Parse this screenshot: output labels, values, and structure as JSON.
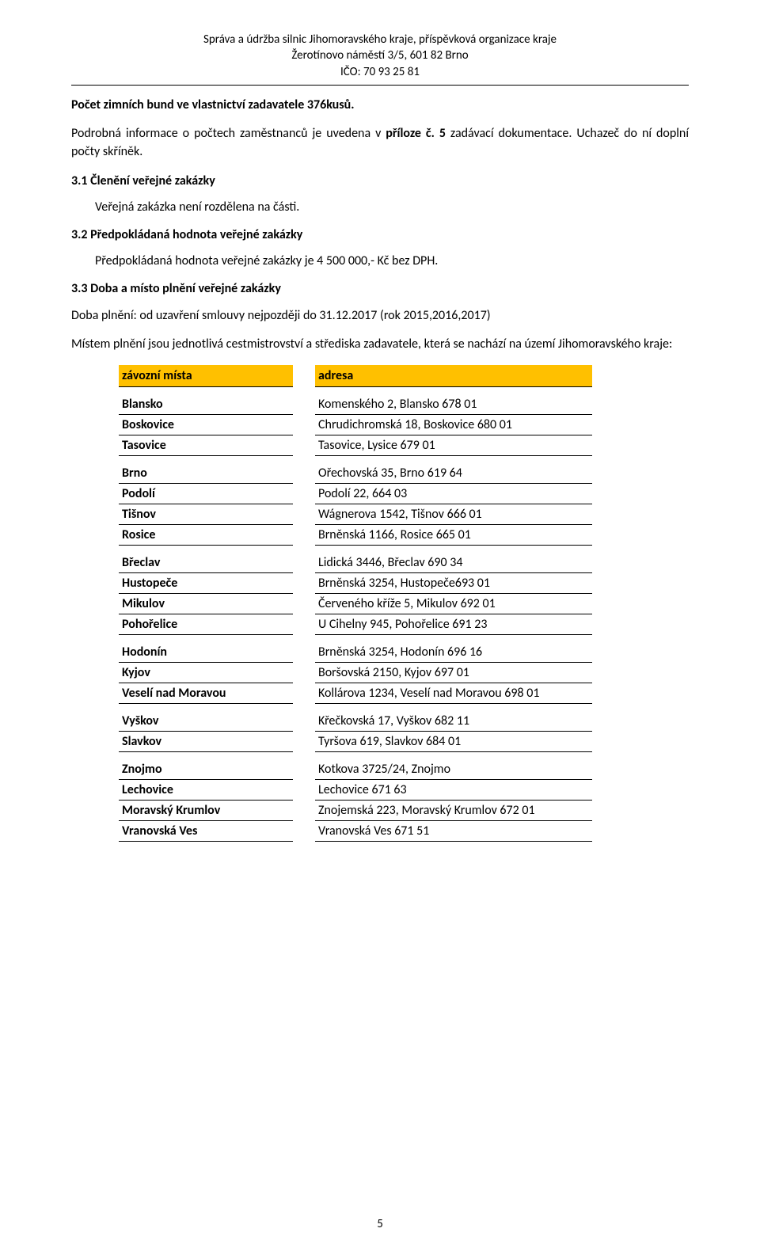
{
  "header": {
    "line1": "Správa a údržba silnic Jihomoravského kraje, příspěvková organizace kraje",
    "line2": "Žerotínovo náměstí 3/5, 601 82 Brno",
    "line3": "IČO: 70 93 25 81"
  },
  "body": {
    "l1": "Počet zimních bund ve vlastnictví zadavatele 376kusů.",
    "l2_a": "Podrobná informace o počtech zaměstnanců je uvedena v ",
    "l2_b": "příloze č. 5",
    "l2_c": " zadávací dokumentace. Uchazeč do ní doplní počty skříněk.",
    "s31_title": "3.1  Členění veřejné zakázky",
    "s31_body": "Veřejná zakázka není rozdělena na části.",
    "s32_title": "3.2  Předpokládaná hodnota veřejné zakázky",
    "s32_body": "Předpokládaná hodnota veřejné zakázky je 4 500 000,- Kč bez DPH.",
    "s33_title": "3.3  Doba a místo plnění veřejné zakázky",
    "s33_body1": "Doba plnění:  od uzavření  smlouvy nejpozději do 31.12.2017 (rok 2015,2016,2017)",
    "s33_body2": "Místem plnění jsou jednotlivá cestmistrovství a střediska zadavatele, která se nachází na území Jihomoravského kraje:"
  },
  "table": {
    "header_left": "závozní místa",
    "header_right": "adresa",
    "groups": [
      [
        {
          "place": "Blansko",
          "addr": "Komenského 2, Blansko 678 01"
        },
        {
          "place": "Boskovice",
          "addr": "Chrudichromská 18, Boskovice 680 01"
        },
        {
          "place": "Tasovice",
          "addr": "Tasovice, Lysice 679 01"
        }
      ],
      [
        {
          "place": "Brno",
          "addr": "Ořechovská 35, Brno 619 64"
        },
        {
          "place": "Podolí",
          "addr": "Podolí 22, 664 03"
        },
        {
          "place": "Tišnov",
          "addr": "Wágnerova 1542, Tišnov 666 01"
        },
        {
          "place": "Rosice",
          "addr": "Brněnská 1166, Rosice 665 01"
        }
      ],
      [
        {
          "place": "Břeclav",
          "addr": "Lidická 3446, Břeclav 690 34"
        },
        {
          "place": "Hustopeče",
          "addr": "Brněnská 3254, Hustopeče693 01"
        },
        {
          "place": "Mikulov",
          "addr": "Červeného kříže 5, Mikulov 692 01"
        },
        {
          "place": "Pohořelice",
          "addr": "U Cihelny 945, Pohořelice  691 23"
        }
      ],
      [
        {
          "place": "Hodonín",
          "addr": "Brněnská 3254, Hodonín 696 16"
        },
        {
          "place": "Kyjov",
          "addr": "Boršovská 2150, Kyjov 697 01"
        },
        {
          "place": "Veselí nad Moravou",
          "addr": "Kollárova 1234, Veselí nad Moravou 698 01"
        }
      ],
      [
        {
          "place": "Vyškov",
          "addr": "Křečkovská 17, Vyškov 682 11"
        },
        {
          "place": "Slavkov",
          "addr": "Tyršova 619, Slavkov 684 01"
        }
      ],
      [
        {
          "place": "Znojmo",
          "addr": "Kotkova 3725/24, Znojmo"
        },
        {
          "place": "Lechovice",
          "addr": "Lechovice 671 63"
        },
        {
          "place": "Moravský Krumlov",
          "addr": "Znojemská 223, Moravský Krumlov 672 01"
        },
        {
          "place": "Vranovská Ves",
          "addr": "Vranovská Ves 671 51"
        }
      ]
    ]
  },
  "colors": {
    "table_header_bg": "#ffc000",
    "border": "#000000",
    "text": "#000000",
    "background": "#ffffff"
  },
  "page_number": "5"
}
